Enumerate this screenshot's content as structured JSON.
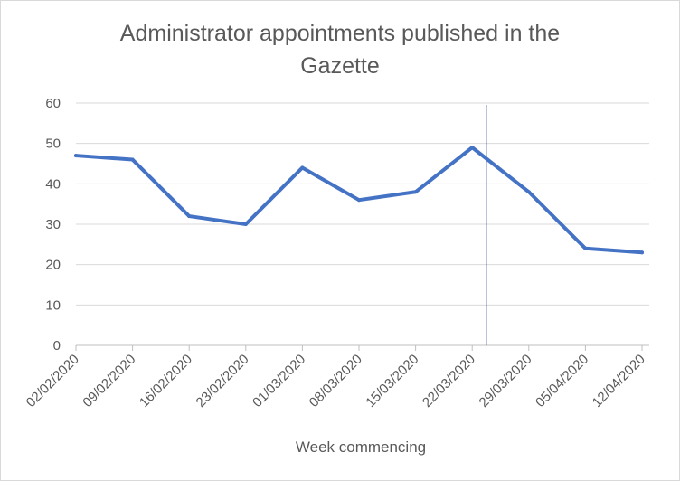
{
  "chart_data": {
    "type": "line",
    "title_lines": [
      "Administrator appointments published in the",
      "Gazette"
    ],
    "xlabel": "Week commencing",
    "ylabel": "",
    "categories": [
      "02/02/2020",
      "09/02/2020",
      "16/02/2020",
      "23/02/2020",
      "01/03/2020",
      "08/03/2020",
      "15/03/2020",
      "22/03/2020",
      "29/03/2020",
      "05/04/2020",
      "12/04/2020"
    ],
    "series": [
      {
        "values": [
          47,
          46,
          32,
          30,
          44,
          36,
          38,
          49,
          38,
          24,
          23
        ],
        "color": "#4472c4"
      }
    ],
    "ylim": [
      0,
      60
    ],
    "yticks": [
      0,
      10,
      20,
      30,
      40,
      50,
      60
    ],
    "grid": true,
    "legend": "none",
    "marker_line": {
      "between": [
        "22/03/2020",
        "29/03/2020"
      ],
      "color": "#2f5597"
    },
    "gridline_color": "#d9d9d9",
    "axis_color": "#bfbfbf"
  }
}
